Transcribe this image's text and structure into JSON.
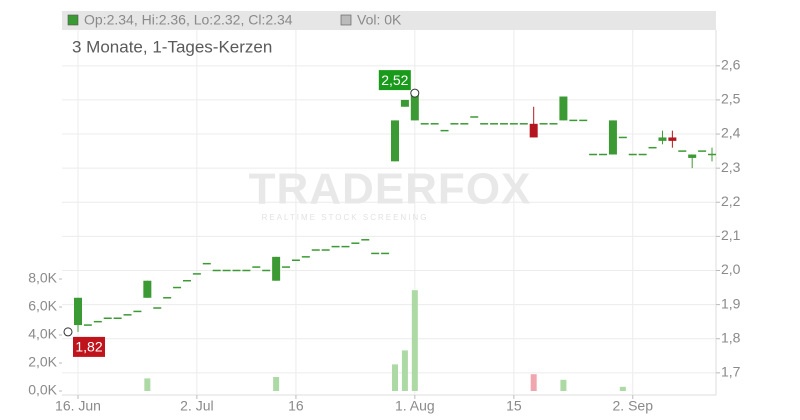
{
  "chart_data": {
    "type": "candlestick",
    "subtitle": "3 Monate, 1-Tages-Kerzen",
    "ohlc_legend": "Op:2.34, Hi:2.36, Lo:2.32, Cl:2.34",
    "volume_legend": "Vol: 0K",
    "watermark": "TRADERFOX",
    "watermark_tagline": "REALTIME STOCK SCREENING",
    "categories": [
      "16. Jun",
      null,
      null,
      null,
      null,
      null,
      null,
      null,
      null,
      null,
      null,
      null,
      "2. Jul",
      null,
      null,
      null,
      null,
      null,
      null,
      null,
      null,
      null,
      "16",
      null,
      null,
      null,
      null,
      null,
      null,
      null,
      null,
      null,
      null,
      null,
      "1. Aug",
      null,
      null,
      null,
      null,
      null,
      null,
      null,
      null,
      null,
      "15",
      null,
      null,
      null,
      null,
      null,
      null,
      null,
      null,
      null,
      null,
      null,
      "2. Sep",
      null,
      null,
      null,
      null,
      null,
      null,
      null,
      null
    ],
    "open": [
      1.84,
      1.84,
      1.85,
      1.86,
      1.86,
      1.87,
      1.88,
      1.92,
      1.89,
      1.92,
      1.95,
      1.97,
      1.99,
      2.02,
      2.0,
      2.0,
      2.0,
      2.0,
      2.01,
      2.0,
      1.97,
      2.01,
      2.03,
      2.04,
      2.06,
      2.06,
      2.07,
      2.07,
      2.08,
      2.09,
      2.05,
      2.05,
      2.32,
      2.48,
      2.44,
      2.43,
      2.43,
      2.41,
      2.43,
      2.43,
      2.45,
      2.43,
      2.43,
      2.43,
      2.43,
      2.43,
      2.43,
      2.43,
      2.43,
      2.44,
      2.44,
      2.44,
      2.34,
      2.34,
      2.34,
      2.39,
      2.34,
      2.34,
      2.36,
      2.38,
      2.39,
      2.35,
      2.33,
      2.35,
      2.34
    ],
    "high": [
      1.92,
      1.84,
      1.85,
      1.86,
      1.86,
      1.87,
      1.88,
      1.97,
      1.89,
      1.92,
      1.95,
      1.97,
      1.99,
      2.02,
      2.0,
      2.0,
      2.0,
      2.0,
      2.01,
      2.0,
      2.04,
      2.01,
      2.03,
      2.04,
      2.06,
      2.06,
      2.07,
      2.07,
      2.08,
      2.09,
      2.05,
      2.05,
      2.44,
      2.5,
      2.52,
      2.43,
      2.43,
      2.41,
      2.43,
      2.43,
      2.45,
      2.43,
      2.43,
      2.43,
      2.43,
      2.43,
      2.48,
      2.43,
      2.43,
      2.51,
      2.44,
      2.44,
      2.34,
      2.34,
      2.44,
      2.39,
      2.34,
      2.34,
      2.36,
      2.41,
      2.41,
      2.35,
      2.34,
      2.35,
      2.36
    ],
    "low": [
      1.82,
      1.84,
      1.85,
      1.86,
      1.86,
      1.87,
      1.88,
      1.92,
      1.89,
      1.92,
      1.95,
      1.97,
      1.99,
      2.02,
      2.0,
      2.0,
      2.0,
      2.0,
      2.01,
      2.0,
      1.97,
      2.01,
      2.03,
      2.04,
      2.06,
      2.06,
      2.07,
      2.07,
      2.08,
      2.09,
      2.05,
      2.05,
      2.32,
      2.48,
      2.44,
      2.43,
      2.43,
      2.41,
      2.43,
      2.43,
      2.45,
      2.43,
      2.43,
      2.43,
      2.43,
      2.43,
      2.39,
      2.43,
      2.43,
      2.44,
      2.44,
      2.44,
      2.34,
      2.34,
      2.34,
      2.39,
      2.34,
      2.34,
      2.36,
      2.37,
      2.36,
      2.35,
      2.3,
      2.35,
      2.32
    ],
    "close": [
      1.92,
      1.84,
      1.85,
      1.86,
      1.86,
      1.87,
      1.88,
      1.97,
      1.89,
      1.92,
      1.95,
      1.97,
      1.99,
      2.02,
      2.0,
      2.0,
      2.0,
      2.0,
      2.01,
      2.0,
      2.04,
      2.01,
      2.03,
      2.04,
      2.06,
      2.06,
      2.07,
      2.07,
      2.08,
      2.09,
      2.05,
      2.05,
      2.44,
      2.5,
      2.52,
      2.43,
      2.43,
      2.41,
      2.43,
      2.43,
      2.45,
      2.43,
      2.43,
      2.43,
      2.43,
      2.43,
      2.39,
      2.43,
      2.43,
      2.51,
      2.44,
      2.44,
      2.34,
      2.34,
      2.44,
      2.39,
      2.34,
      2.34,
      2.36,
      2.39,
      2.38,
      2.35,
      2.34,
      2.35,
      2.34
    ],
    "volume": [
      0,
      0,
      0,
      0,
      0,
      0,
      0,
      900,
      0,
      0,
      0,
      0,
      0,
      0,
      0,
      0,
      0,
      0,
      0,
      0,
      1000,
      0,
      0,
      0,
      0,
      0,
      0,
      0,
      0,
      0,
      0,
      0,
      1900,
      2900,
      7200,
      0,
      0,
      0,
      0,
      0,
      0,
      0,
      0,
      0,
      0,
      0,
      1200,
      0,
      0,
      800,
      0,
      0,
      0,
      0,
      0,
      300,
      0,
      0,
      0,
      0,
      0,
      0,
      0,
      0,
      0
    ],
    "up_color": "#3c9a34",
    "down_color": "#b3161e",
    "volume_up_color": "#acd9a4",
    "volume_down_color": "#f0a6ae",
    "max_label": {
      "value": 2.52,
      "label": "2,52"
    },
    "min_label": {
      "value": 1.82,
      "label": "1,82"
    },
    "ylim": [
      1.635,
      2.705
    ],
    "yticks": [
      {
        "value": 1.7,
        "label": "1,7"
      },
      {
        "value": 1.8,
        "label": "1,8"
      },
      {
        "value": 1.9,
        "label": "1,9"
      },
      {
        "value": 2.0,
        "label": "2,0"
      },
      {
        "value": 2.1,
        "label": "2,1"
      },
      {
        "value": 2.2,
        "label": "2,2"
      },
      {
        "value": 2.3,
        "label": "2,3"
      },
      {
        "value": 2.4,
        "label": "2,4"
      },
      {
        "value": 2.5,
        "label": "2,5"
      },
      {
        "value": 2.6,
        "label": "2,6"
      }
    ],
    "y2lim": [
      0,
      26000
    ],
    "y2ticks": [
      {
        "value": 0,
        "label": "0,0K"
      },
      {
        "value": 2000,
        "label": "2,0K"
      },
      {
        "value": 4000,
        "label": "4,0K"
      },
      {
        "value": 6000,
        "label": "6,0K"
      },
      {
        "value": 8000,
        "label": "8,0K"
      }
    ],
    "grid": true
  }
}
